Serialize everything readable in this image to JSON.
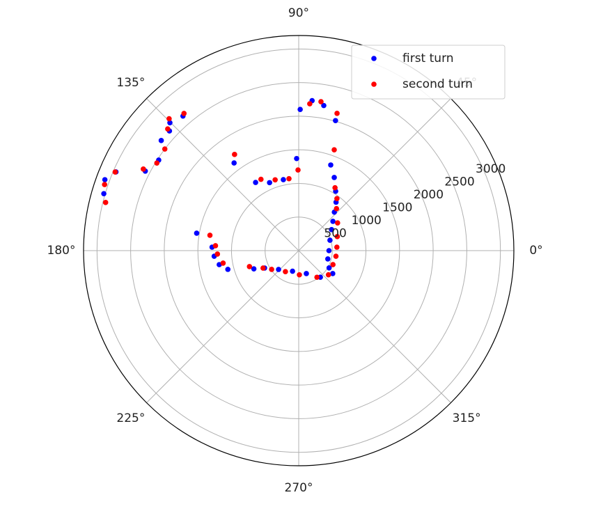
{
  "chart_data": {
    "type": "polar-scatter",
    "xticks": [
      {
        "value": 0,
        "label": "0°"
      },
      {
        "value": 45,
        "label": "45°"
      },
      {
        "value": 90,
        "label": "90°"
      },
      {
        "value": 135,
        "label": "135°"
      },
      {
        "value": 180,
        "label": "180°"
      },
      {
        "value": 225,
        "label": "225°"
      },
      {
        "value": 270,
        "label": "270°"
      },
      {
        "value": 315,
        "label": "315°"
      }
    ],
    "ylim": [
      0,
      3200
    ],
    "yticks": [
      500,
      1000,
      1500,
      2000,
      2500,
      3000
    ],
    "rlabel_angle": 22.5,
    "grid": true,
    "legend": "upper right",
    "series": [
      {
        "name": "first turn",
        "color": "#0000ff",
        "x": [
          89.4,
          84.9,
          80.2,
          74.2,
          91.3,
          69.5,
          64.1,
          58.1,
          52.4,
          47.2,
          40.6,
          32.6,
          18.4,
          0,
          344.1,
          330.4,
          326.0,
          309.2,
          288.4,
          253.3,
          223.0,
          207.0,
          202.1,
          122.3,
          113.2,
          102.2,
          170.3,
          177.7,
          183.8,
          190.0,
          194.8,
          126.4,
          135.2,
          130.7,
          141.3,
          147.1,
          152.6,
          156.7,
          159.9,
          163.7,
          137.2
        ],
        "values": [
          2100,
          2240,
          2190,
          2010,
          1370,
          1360,
          1210,
          1040,
          910,
          780,
          670,
          580,
          490,
          450,
          450,
          520,
          610,
          510,
          360,
          320,
          410,
          570,
          720,
          1200,
          1100,
          1080,
          1540,
          1290,
          1260,
          1200,
          1090,
          1620,
          2700,
          2640,
          2620,
          2480,
          2570,
          2960,
          3070,
          3020,
          2620
        ]
      },
      {
        "name": "second turn",
        "color": "#ff0000",
        "x": [
          85.7,
          81.5,
          74.4,
          70.6,
          90.5,
          60.0,
          53.7,
          48.0,
          35.5,
          20.0,
          5.2,
          351.4,
          337.8,
          320.9,
          304.4,
          271.6,
          237.7,
          214.7,
          206.1,
          198.0,
          123.7,
          117.9,
          108.4,
          97.7,
          170.2,
          176.6,
          182.4,
          189.4,
          129.9,
          134.5,
          137.1,
          142.8,
          148.3,
          152.3,
          156.8,
          161.2,
          166.0
        ],
        "values": [
          2190,
          2240,
          2120,
          1590,
          1200,
          1080,
          960,
          840,
          710,
          610,
          570,
          560,
          550,
          570,
          480,
          360,
          370,
          490,
          590,
          770,
          1720,
          1200,
          1110,
          1080,
          1340,
          1240,
          1210,
          1140,
          2660,
          2750,
          2660,
          2500,
          2480,
          2610,
          2970,
          3050,
          2960
        ]
      }
    ]
  }
}
